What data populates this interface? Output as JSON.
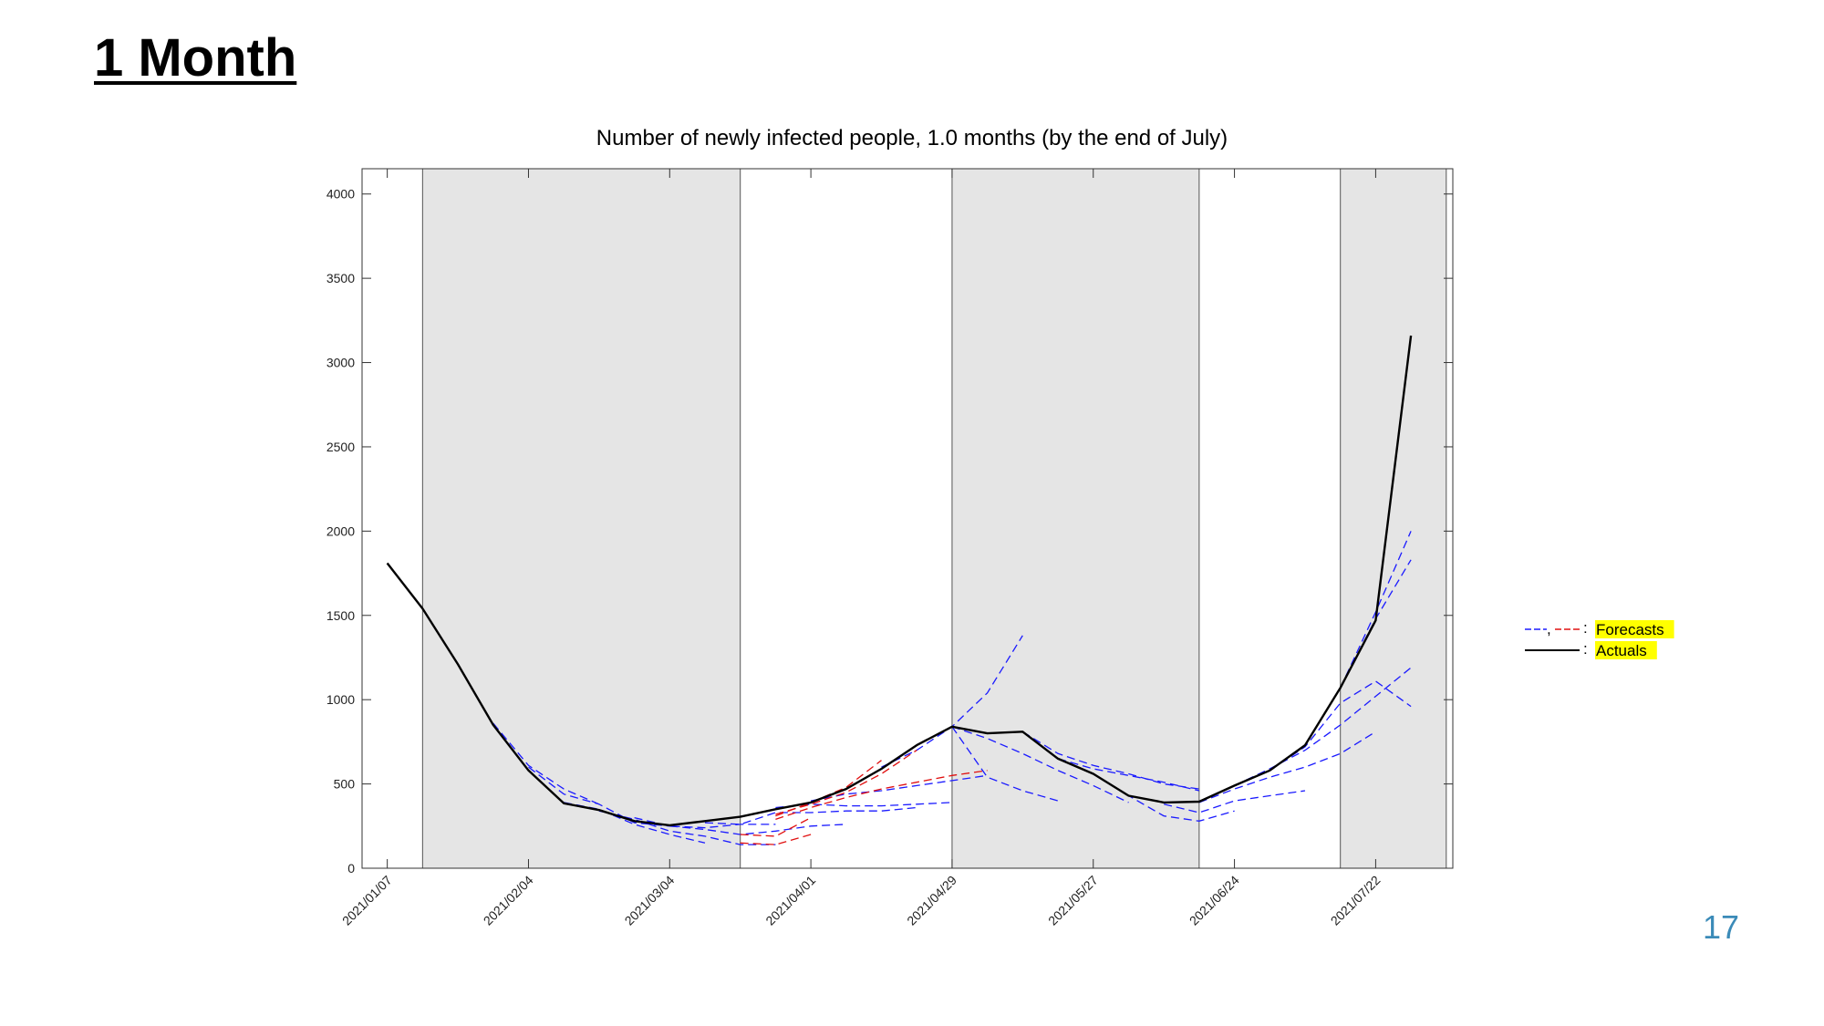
{
  "slide": {
    "title": "1 Month",
    "page_number": "17"
  },
  "chart_data": {
    "type": "line",
    "title": "Number of newly infected people, 1.0 months (by the end of July)",
    "xlabel": "",
    "ylabel": "",
    "x_range": [
      "2021/01/07",
      "2021/08/05"
    ],
    "ylim": [
      0,
      4150
    ],
    "y_ticks": [
      0,
      500,
      1000,
      1500,
      2000,
      2500,
      3000,
      3500,
      4000
    ],
    "x_tick_labels": [
      "2021/01/07",
      "2021/02/04",
      "2021/03/04",
      "2021/04/01",
      "2021/04/29",
      "2021/05/27",
      "2021/06/24",
      "2021/07/22"
    ],
    "shaded_periods": [
      [
        "2021/01/14",
        "2021/03/18"
      ],
      [
        "2021/04/29",
        "2021/06/17"
      ],
      [
        "2021/07/15",
        "2021/08/05"
      ]
    ],
    "legend": {
      "placement": "right, outside plot",
      "entries": [
        {
          "label": "Forecasts",
          "color": "#1a1aff",
          "color2": "#e01010",
          "style": "dashed"
        },
        {
          "label": "Actuals",
          "color": "#000000",
          "style": "solid"
        }
      ],
      "highlight_color": "#ffff00"
    },
    "actuals": {
      "x": [
        "2021/01/07",
        "2021/01/14",
        "2021/01/21",
        "2021/01/28",
        "2021/02/04",
        "2021/02/11",
        "2021/02/18",
        "2021/02/25",
        "2021/03/04",
        "2021/03/11",
        "2021/03/18",
        "2021/03/25",
        "2021/04/01",
        "2021/04/08",
        "2021/04/15",
        "2021/04/22",
        "2021/04/29",
        "2021/05/06",
        "2021/05/13",
        "2021/05/20",
        "2021/05/27",
        "2021/06/03",
        "2021/06/10",
        "2021/06/17",
        "2021/06/24",
        "2021/07/01",
        "2021/07/08",
        "2021/07/15",
        "2021/07/22",
        "2021/07/29"
      ],
      "values": [
        1810,
        1540,
        1210,
        850,
        580,
        385,
        345,
        280,
        255,
        280,
        305,
        350,
        390,
        470,
        590,
        730,
        840,
        800,
        810,
        650,
        560,
        430,
        390,
        395,
        490,
        580,
        730,
        1070,
        1470,
        3160
      ]
    },
    "forecast_colors": {
      "blue": "#1a1aff",
      "red": "#e01010"
    },
    "forecasts": [
      {
        "color": "blue",
        "x": [
          "2021/01/28",
          "2021/02/04",
          "2021/02/11",
          "2021/02/18"
        ],
        "values": [
          860,
          610,
          470,
          380
        ]
      },
      {
        "color": "blue",
        "x": [
          "2021/02/04",
          "2021/02/11",
          "2021/02/18",
          "2021/02/25",
          "2021/03/04"
        ],
        "values": [
          600,
          440,
          380,
          270,
          250
        ]
      },
      {
        "color": "blue",
        "x": [
          "2021/02/11",
          "2021/02/18",
          "2021/02/25",
          "2021/03/04",
          "2021/03/11"
        ],
        "values": [
          390,
          350,
          260,
          200,
          150
        ]
      },
      {
        "color": "blue",
        "x": [
          "2021/02/18",
          "2021/02/25",
          "2021/03/04",
          "2021/03/11",
          "2021/03/18",
          "2021/03/25"
        ],
        "values": [
          340,
          290,
          220,
          190,
          140,
          140
        ]
      },
      {
        "color": "blue",
        "x": [
          "2021/02/25",
          "2021/03/04",
          "2021/03/11",
          "2021/03/18",
          "2021/03/25"
        ],
        "values": [
          300,
          250,
          240,
          260,
          260
        ]
      },
      {
        "color": "blue",
        "x": [
          "2021/03/04",
          "2021/03/11",
          "2021/03/18",
          "2021/03/25",
          "2021/04/01",
          "2021/04/08"
        ],
        "values": [
          250,
          230,
          200,
          220,
          250,
          260
        ]
      },
      {
        "color": "blue",
        "x": [
          "2021/03/11",
          "2021/03/18",
          "2021/03/25",
          "2021/04/01",
          "2021/04/08",
          "2021/04/15",
          "2021/04/22"
        ],
        "values": [
          270,
          260,
          330,
          330,
          340,
          340,
          360
        ]
      },
      {
        "color": "blue",
        "x": [
          "2021/03/25",
          "2021/04/01",
          "2021/04/08",
          "2021/04/15",
          "2021/04/22",
          "2021/04/29"
        ],
        "values": [
          360,
          380,
          370,
          370,
          380,
          390
        ]
      },
      {
        "color": "blue",
        "x": [
          "2021/04/01",
          "2021/04/08",
          "2021/04/15",
          "2021/04/22",
          "2021/04/29",
          "2021/05/06"
        ],
        "values": [
          400,
          440,
          460,
          490,
          520,
          550
        ]
      },
      {
        "color": "blue",
        "x": [
          "2021/04/15",
          "2021/04/22",
          "2021/04/29",
          "2021/05/06",
          "2021/05/13"
        ],
        "values": [
          600,
          700,
          840,
          1040,
          1380
        ]
      },
      {
        "color": "blue",
        "x": [
          "2021/04/29",
          "2021/05/06",
          "2021/05/13",
          "2021/05/20"
        ],
        "values": [
          840,
          540,
          460,
          400
        ]
      },
      {
        "color": "blue",
        "x": [
          "2021/04/29",
          "2021/05/06",
          "2021/05/13",
          "2021/05/20",
          "2021/05/27",
          "2021/06/03"
        ],
        "values": [
          840,
          770,
          680,
          580,
          490,
          390
        ]
      },
      {
        "color": "blue",
        "x": [
          "2021/05/13",
          "2021/05/20",
          "2021/05/27",
          "2021/06/03",
          "2021/06/10",
          "2021/06/17"
        ],
        "values": [
          810,
          680,
          610,
          560,
          500,
          470
        ]
      },
      {
        "color": "blue",
        "x": [
          "2021/05/20",
          "2021/05/27",
          "2021/06/03",
          "2021/06/10",
          "2021/06/17"
        ],
        "values": [
          650,
          590,
          550,
          510,
          460
        ]
      },
      {
        "color": "blue",
        "x": [
          "2021/05/27",
          "2021/06/03",
          "2021/06/10",
          "2021/06/17",
          "2021/06/24"
        ],
        "values": [
          560,
          430,
          310,
          280,
          340
        ]
      },
      {
        "color": "blue",
        "x": [
          "2021/06/10",
          "2021/06/17",
          "2021/06/24",
          "2021/07/01",
          "2021/07/08"
        ],
        "values": [
          380,
          330,
          400,
          430,
          460
        ]
      },
      {
        "color": "blue",
        "x": [
          "2021/06/17",
          "2021/06/24",
          "2021/07/01",
          "2021/07/08",
          "2021/07/15",
          "2021/07/22"
        ],
        "values": [
          390,
          470,
          540,
          600,
          680,
          810
        ]
      },
      {
        "color": "blue",
        "x": [
          "2021/06/24",
          "2021/07/01",
          "2021/07/08",
          "2021/07/15",
          "2021/07/22",
          "2021/07/29"
        ],
        "values": [
          490,
          590,
          700,
          850,
          1020,
          1190
        ]
      },
      {
        "color": "blue",
        "x": [
          "2021/07/01",
          "2021/07/08",
          "2021/07/15",
          "2021/07/22",
          "2021/07/29"
        ],
        "values": [
          580,
          720,
          980,
          1110,
          960
        ]
      },
      {
        "color": "blue",
        "x": [
          "2021/07/15",
          "2021/07/22",
          "2021/07/29"
        ],
        "values": [
          1070,
          1520,
          2000
        ]
      },
      {
        "color": "blue",
        "x": [
          "2021/07/15",
          "2021/07/22",
          "2021/07/29"
        ],
        "values": [
          1070,
          1480,
          1830
        ]
      },
      {
        "color": "red",
        "x": [
          "2021/03/25",
          "2021/04/01",
          "2021/04/08",
          "2021/04/15"
        ],
        "values": [
          310,
          390,
          480,
          640
        ]
      },
      {
        "color": "red",
        "x": [
          "2021/03/25",
          "2021/04/01",
          "2021/04/08",
          "2021/04/15",
          "2021/04/22"
        ],
        "values": [
          320,
          380,
          450,
          560,
          700
        ]
      },
      {
        "color": "red",
        "x": [
          "2021/03/25",
          "2021/04/01",
          "2021/04/08",
          "2021/04/15",
          "2021/04/22",
          "2021/04/29",
          "2021/05/06"
        ],
        "values": [
          290,
          360,
          420,
          470,
          510,
          550,
          580
        ]
      },
      {
        "color": "red",
        "x": [
          "2021/03/18",
          "2021/03/25",
          "2021/04/01"
        ],
        "values": [
          200,
          190,
          300
        ]
      },
      {
        "color": "red",
        "x": [
          "2021/03/18",
          "2021/03/25",
          "2021/04/01"
        ],
        "values": [
          150,
          140,
          200
        ]
      }
    ]
  }
}
